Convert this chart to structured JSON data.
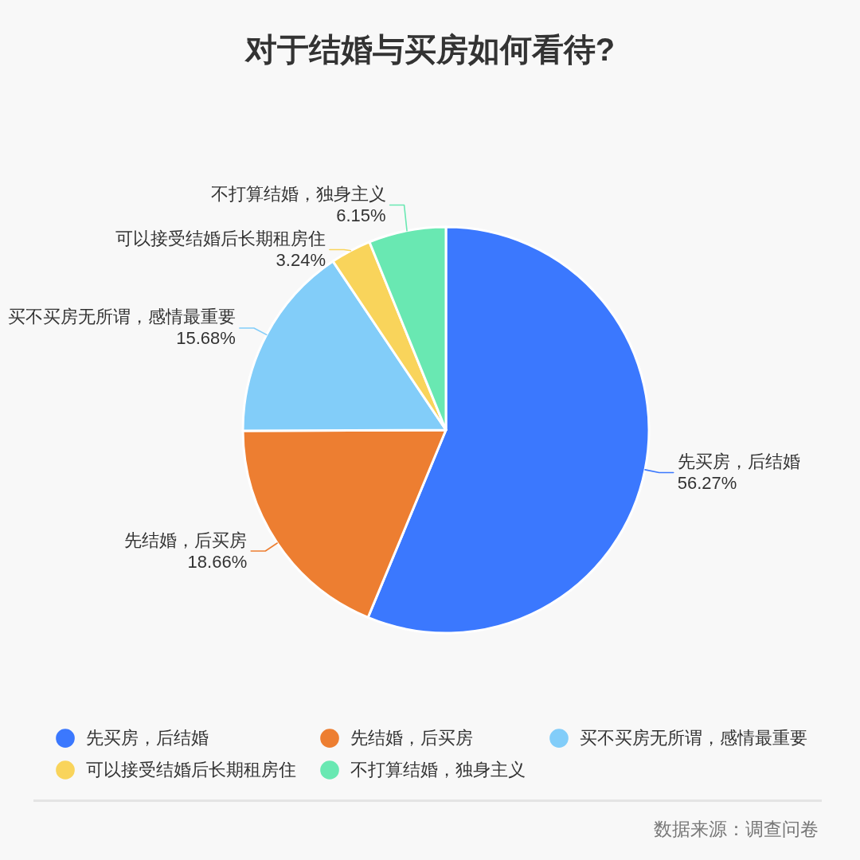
{
  "chart_data": {
    "type": "pie",
    "title": "对于结婚与买房如何看待?",
    "categories": [
      "先买房，后结婚",
      "先结婚，后买房",
      "买不买房无所谓，感情最重要",
      "可以接受结婚后长期租房住",
      "不打算结婚，独身主义"
    ],
    "values": [
      56.27,
      18.66,
      15.68,
      3.24,
      6.15
    ],
    "value_labels": [
      "56.27%",
      "18.66%",
      "15.68%",
      "3.24%",
      "6.15%"
    ],
    "colors": [
      "#3b78fe",
      "#ed7e31",
      "#82cdf9",
      "#f9d45b",
      "#69e8b2"
    ],
    "legend": "bottom",
    "annotations": [
      "数据来源：调查问卷"
    ]
  }
}
